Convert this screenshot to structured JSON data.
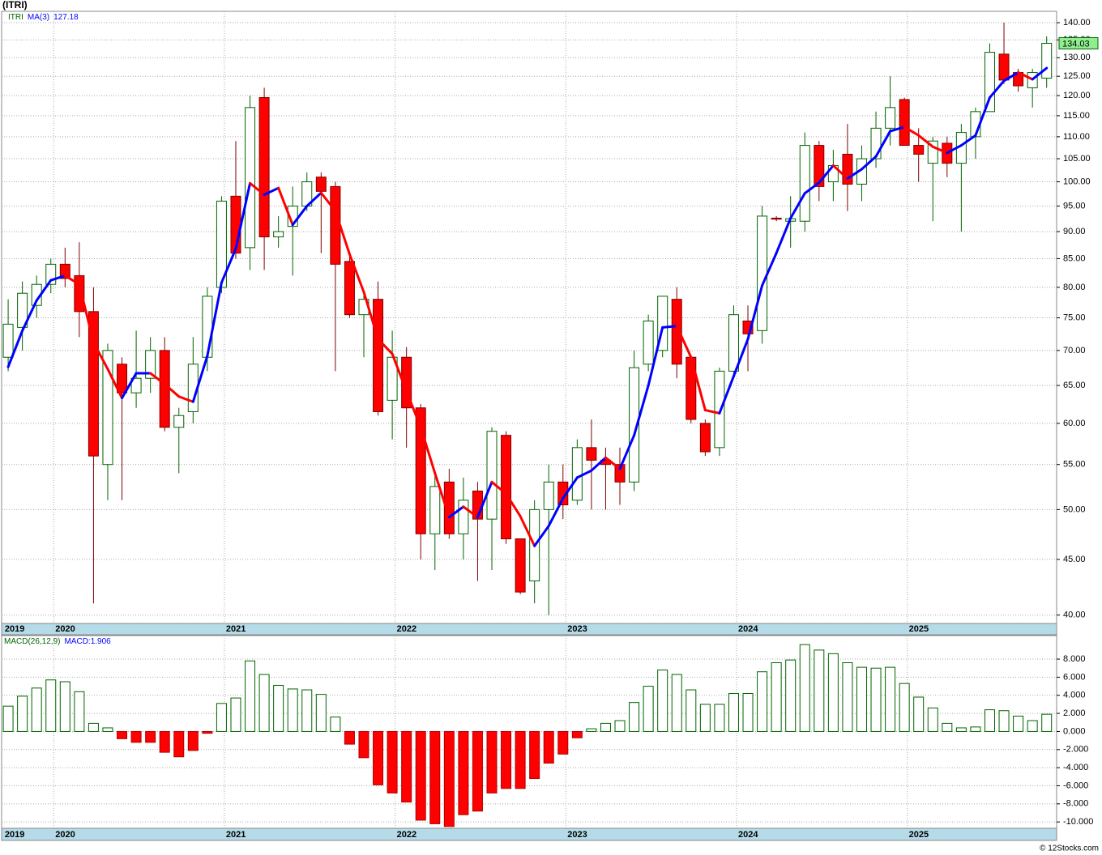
{
  "title": "(ITRI)",
  "footer": "© 12Stocks.com",
  "chart_data": [
    {
      "type": "candlestick",
      "name": "ITRI",
      "log": true,
      "grid": true,
      "up_color": "#006400",
      "down_color": "#ff0000",
      "last_color": "#90ee90",
      "open": [
        69,
        73.5,
        77,
        80.5,
        84,
        82,
        76,
        55,
        68,
        64,
        66,
        70,
        59.5,
        61.5,
        69,
        80,
        97,
        87,
        119.5,
        89,
        91,
        95,
        101,
        99,
        84.5,
        75.5,
        78,
        63,
        69,
        62,
        47.5,
        53,
        47.5,
        52,
        49,
        58.5,
        47,
        43,
        50,
        53,
        51,
        57,
        55.5,
        55,
        53,
        68,
        70,
        78,
        69,
        60,
        57,
        67,
        74.5,
        73,
        92.6,
        92,
        92,
        108,
        100,
        106,
        99.5,
        105,
        112,
        119,
        108,
        104,
        108.5,
        104,
        110,
        116,
        131,
        126,
        122,
        124.5
      ],
      "high": [
        78,
        81,
        82,
        85,
        87,
        88,
        80,
        71,
        69,
        73,
        72,
        72,
        62,
        72,
        80,
        97,
        109,
        120,
        122,
        93,
        99,
        102,
        102,
        100,
        86,
        79,
        81,
        73,
        70.5,
        62.5,
        54,
        54.5,
        53.5,
        53,
        59.5,
        59,
        47,
        51,
        55,
        55,
        58,
        60.5,
        57,
        57,
        70,
        75.5,
        78.5,
        80,
        69,
        60.5,
        67.5,
        77,
        77,
        95,
        93,
        97,
        111,
        109,
        107,
        113,
        108,
        116,
        125,
        119.5,
        112,
        110,
        110,
        113,
        117,
        134,
        140,
        127,
        127,
        136
      ],
      "low": [
        67,
        70,
        75,
        79,
        80,
        72,
        41,
        51,
        51,
        62,
        64,
        59,
        54,
        60,
        67,
        79,
        85,
        83,
        83,
        87,
        82,
        94,
        86,
        67,
        75,
        69,
        61,
        58,
        57,
        45,
        44,
        47,
        45,
        43,
        44,
        46.5,
        41.8,
        41,
        40,
        49,
        50.5,
        50,
        50,
        50.5,
        52,
        67,
        69,
        66,
        60,
        56,
        56,
        66,
        67,
        71,
        92,
        87,
        90,
        96,
        96,
        94,
        96,
        103,
        108,
        108,
        100,
        92,
        101,
        90,
        105,
        116,
        123,
        121,
        117,
        122
      ],
      "close": [
        74,
        79,
        80.5,
        84,
        81.5,
        76,
        56,
        70,
        64,
        66,
        70,
        59.5,
        61,
        68,
        78.5,
        96,
        86,
        117,
        89,
        90,
        95,
        100,
        98,
        84,
        75.5,
        78,
        61.5,
        69,
        62,
        47.5,
        52.5,
        47.5,
        51,
        49,
        59,
        47,
        42,
        50,
        53,
        50.5,
        57,
        55.5,
        55,
        53,
        67.5,
        74.5,
        78.5,
        68,
        60.5,
        56.5,
        67,
        75.5,
        72.5,
        93,
        92.4,
        92.5,
        108,
        99,
        103.5,
        99.5,
        105,
        112,
        117,
        108,
        106,
        109,
        104,
        111,
        116,
        131.5,
        124,
        122.5,
        126,
        134.03
      ],
      "ma": {
        "name": "MA(3)",
        "up_color": "#0000ff",
        "down_color": "#ff0000",
        "values": [
          67.6,
          73,
          77.8,
          81.2,
          82,
          80.5,
          71.2,
          67.3,
          63.3,
          66.7,
          66.7,
          65.2,
          63.5,
          62.8,
          69.2,
          80.8,
          86.8,
          99.7,
          97.3,
          98.7,
          91.3,
          95,
          97.7,
          94,
          85.8,
          79.2,
          71.7,
          69.5,
          64.2,
          59.5,
          54,
          49.2,
          50.3,
          49.2,
          53,
          51.7,
          49.3,
          46.3,
          48.3,
          51.2,
          53.5,
          54.3,
          55.8,
          54.5,
          58.5,
          65,
          73.5,
          73.7,
          69,
          61.7,
          61.3,
          66.3,
          71.7,
          80.3,
          86,
          92.6,
          97.6,
          99.8,
          103.5,
          100.7,
          102.7,
          105.5,
          111.3,
          112.3,
          110.3,
          107.7,
          106.3,
          108,
          110.3,
          119.5,
          123.8,
          126,
          124.2,
          127.18
        ]
      },
      "xlim": [
        -0.46,
        73.7
      ],
      "xticks": [
        {
          "value": -0.35,
          "label": "2019"
        },
        {
          "value": 3.2,
          "label": "2020"
        },
        {
          "value": 15.2,
          "label": "2021"
        },
        {
          "value": 27.2,
          "label": "2022"
        },
        {
          "value": 39.2,
          "label": "2023"
        },
        {
          "value": 51.2,
          "label": "2024"
        },
        {
          "value": 63.2,
          "label": "2025"
        }
      ],
      "ylim": [
        39.3,
        143.4
      ],
      "yticks": [
        {
          "value": 40,
          "label": "40.00"
        },
        {
          "value": 45,
          "label": "45.00"
        },
        {
          "value": 50,
          "label": "50.00"
        },
        {
          "value": 55,
          "label": "55.00"
        },
        {
          "value": 60,
          "label": "60.00"
        },
        {
          "value": 65,
          "label": "65.00"
        },
        {
          "value": 70,
          "label": "70.00"
        },
        {
          "value": 75,
          "label": "75.00"
        },
        {
          "value": 80,
          "label": "80.00"
        },
        {
          "value": 85,
          "label": "85.00"
        },
        {
          "value": 90,
          "label": "90.00"
        },
        {
          "value": 95,
          "label": "95.00"
        },
        {
          "value": 100,
          "label": "100.00"
        },
        {
          "value": 105,
          "label": "105.00"
        },
        {
          "value": 110,
          "label": "110.00"
        },
        {
          "value": 115,
          "label": "115.00"
        },
        {
          "value": 120,
          "label": "120.00"
        },
        {
          "value": 125,
          "label": "125.00"
        },
        {
          "value": 130,
          "label": "130.00"
        },
        {
          "value": 135,
          "label": "135.00"
        },
        {
          "value": 140,
          "label": "140.00"
        }
      ]
    },
    {
      "type": "bar",
      "name": "MACD(26,12,9)",
      "value_label": "MACD:1.906",
      "grid": true,
      "up_color": "#006400",
      "down_color": "#ff0000",
      "values": [
        2.8,
        3.9,
        4.8,
        5.7,
        5.5,
        4.4,
        0.9,
        0.4,
        -0.8,
        -1.2,
        -1.2,
        -2.3,
        -2.8,
        -2.1,
        -0.2,
        3.1,
        3.7,
        7.8,
        6.3,
        5.1,
        4.7,
        4.6,
        4.1,
        1.6,
        -1.4,
        -2.9,
        -5.9,
        -6.8,
        -7.8,
        -9.8,
        -10.2,
        -10.5,
        -9.2,
        -8.8,
        -6.8,
        -6.3,
        -6.3,
        -5.2,
        -3.5,
        -2.5,
        -0.7,
        0.3,
        0.9,
        1.2,
        3.2,
        5,
        6.8,
        6.3,
        4.6,
        3,
        3,
        4.2,
        4.2,
        6.6,
        7.6,
        7.9,
        9.6,
        9,
        8.6,
        7.6,
        7.1,
        7,
        7.1,
        5.3,
        3.8,
        2.6,
        0.9,
        0.4,
        0.5,
        2.4,
        2.3,
        1.7,
        1.2,
        1.906
      ],
      "xlim": [
        -0.46,
        73.7
      ],
      "xticks": [
        {
          "value": -0.35,
          "label": "2019"
        },
        {
          "value": 3.2,
          "label": "2020"
        },
        {
          "value": 15.2,
          "label": "2021"
        },
        {
          "value": 27.2,
          "label": "2022"
        },
        {
          "value": 39.2,
          "label": "2023"
        },
        {
          "value": 51.2,
          "label": "2024"
        },
        {
          "value": 63.2,
          "label": "2025"
        }
      ],
      "ylim": [
        -10.7,
        10.6
      ],
      "yticks": [
        {
          "value": -10,
          "label": "-10.000"
        },
        {
          "value": -8,
          "label": "-8.000"
        },
        {
          "value": -6,
          "label": "-6.000"
        },
        {
          "value": -4,
          "label": "-4.000"
        },
        {
          "value": -2,
          "label": "-2.000"
        },
        {
          "value": 0,
          "label": "0.000"
        },
        {
          "value": 2,
          "label": "2.000"
        },
        {
          "value": 4,
          "label": "4.000"
        },
        {
          "value": 6,
          "label": "6.000"
        },
        {
          "value": 8,
          "label": "8.000"
        }
      ]
    }
  ]
}
